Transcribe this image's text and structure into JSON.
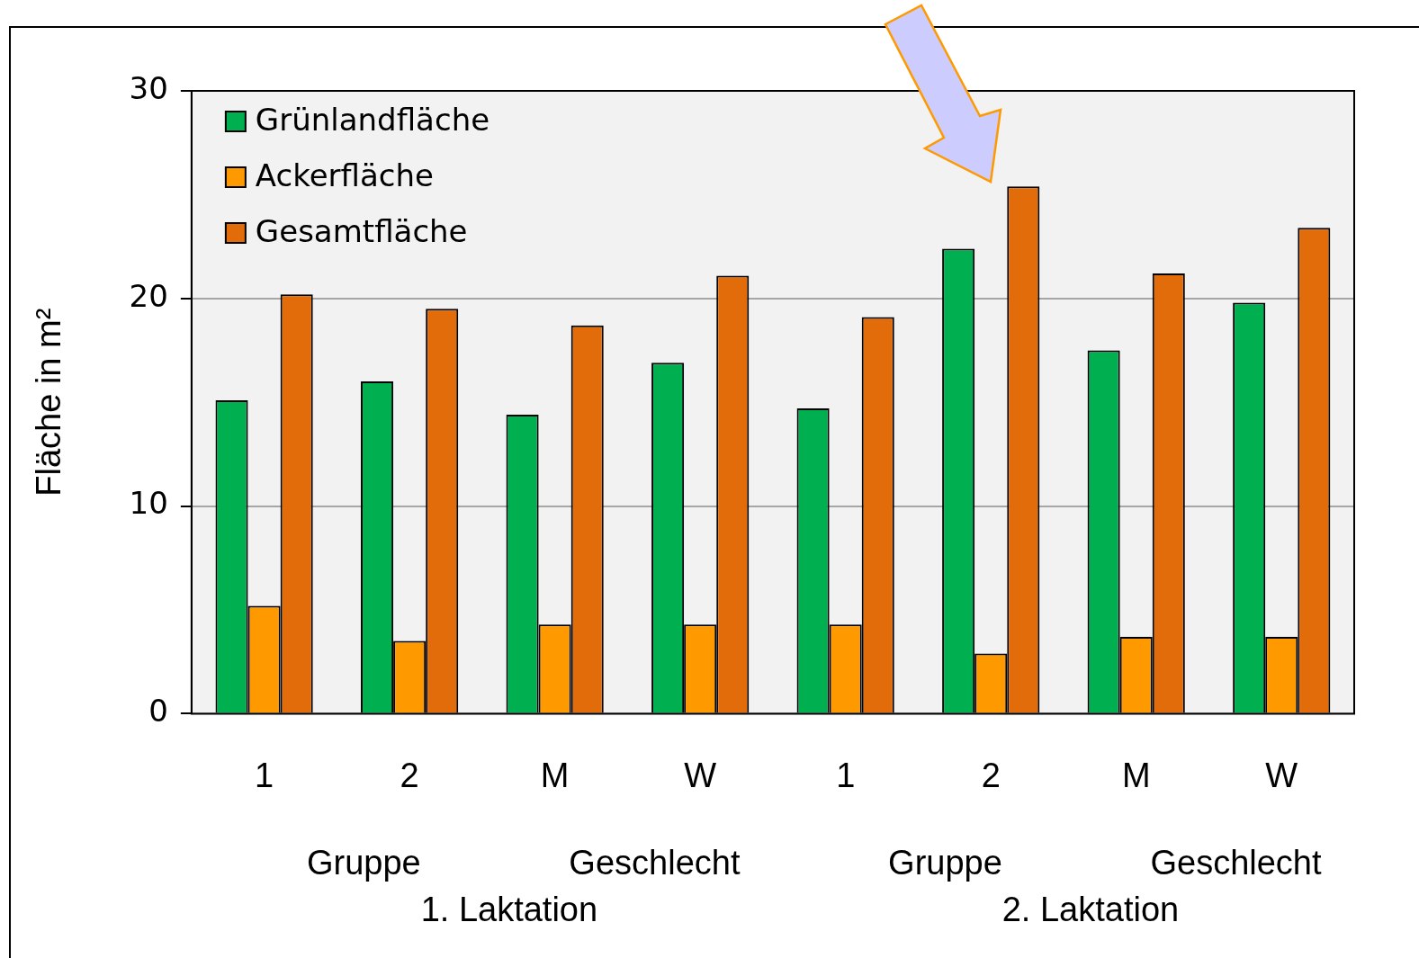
{
  "chart_data": {
    "type": "bar",
    "ylabel": "Fläche in m²",
    "categories": [
      "1",
      "2",
      "M",
      "W",
      "1",
      "2",
      "M",
      "W"
    ],
    "series": [
      {
        "name": "Grünlandfläche",
        "color": "#00b050",
        "values": [
          15.1,
          16.0,
          14.4,
          16.9,
          14.7,
          22.4,
          17.5,
          19.8
        ]
      },
      {
        "name": "Ackerfläche",
        "color": "#ff9900",
        "values": [
          5.2,
          3.5,
          4.3,
          4.3,
          4.3,
          2.9,
          3.7,
          3.7
        ]
      },
      {
        "name": "Gesamtfläche",
        "color": "#e36c0a",
        "values": [
          20.2,
          19.5,
          18.7,
          21.1,
          19.1,
          25.4,
          21.2,
          23.4
        ]
      }
    ],
    "ylim": [
      0,
      30
    ],
    "yticks": [
      0,
      10,
      20,
      30
    ],
    "grid": "y",
    "legend": "top left",
    "annotations": [
      "Gruppe",
      "Geschlecht",
      "Gruppe",
      "Geschlecht",
      "1. Laktation",
      "2. Laktation"
    ]
  }
}
